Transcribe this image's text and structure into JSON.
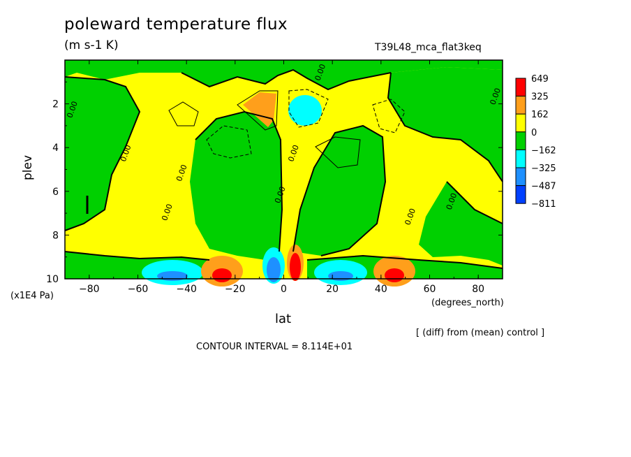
{
  "chart_data": {
    "type": "heatmap",
    "title": "poleward temperature flux",
    "units": "(m s-1 K)",
    "run_name": "T39L48_mca_flat3keq",
    "xlabel": "lat",
    "x_unit": "(degrees_north)",
    "ylabel": "plev",
    "y_unit": "(x1E4 Pa)",
    "xlim": [
      -90,
      90
    ],
    "ylim": [
      10,
      0
    ],
    "x_ticks": [
      "-80",
      "-60",
      "-40",
      "-20",
      "0",
      "20",
      "40",
      "60",
      "80"
    ],
    "y_ticks": [
      "2",
      "4",
      "6",
      "8",
      "10"
    ],
    "colorbar_labels": [
      "649",
      "325",
      "162",
      "0",
      "-162",
      "-325",
      "-487",
      "-811"
    ],
    "colorbar_colors": [
      "#ff0000",
      "#ff9f1b",
      "#ffff00",
      "#00d000",
      "#00ffff",
      "#1e90ff",
      "#0040ff"
    ],
    "contour_label": "0.00",
    "contour_interval_text": "CONTOUR INTERVAL = 8.114E+01",
    "note": "[ (diff) from (mean) control ]",
    "features": [
      {
        "lat": 5,
        "plev": 9.3,
        "sign": "positive",
        "level": "max"
      },
      {
        "lat": -25,
        "plev": 9.6,
        "sign": "positive",
        "level": "strong"
      },
      {
        "lat": 43,
        "plev": 9.6,
        "sign": "positive",
        "level": "strong"
      },
      {
        "lat": -4,
        "plev": 9.4,
        "sign": "negative",
        "level": "strong"
      },
      {
        "lat": -45,
        "plev": 9.6,
        "sign": "negative",
        "level": "moderate"
      },
      {
        "lat": 25,
        "plev": 9.6,
        "sign": "negative",
        "level": "moderate"
      },
      {
        "lat": -10,
        "plev": 2.3,
        "sign": "positive",
        "level": "moderate"
      },
      {
        "lat": 10,
        "plev": 2.3,
        "sign": "negative",
        "level": "moderate"
      }
    ]
  }
}
